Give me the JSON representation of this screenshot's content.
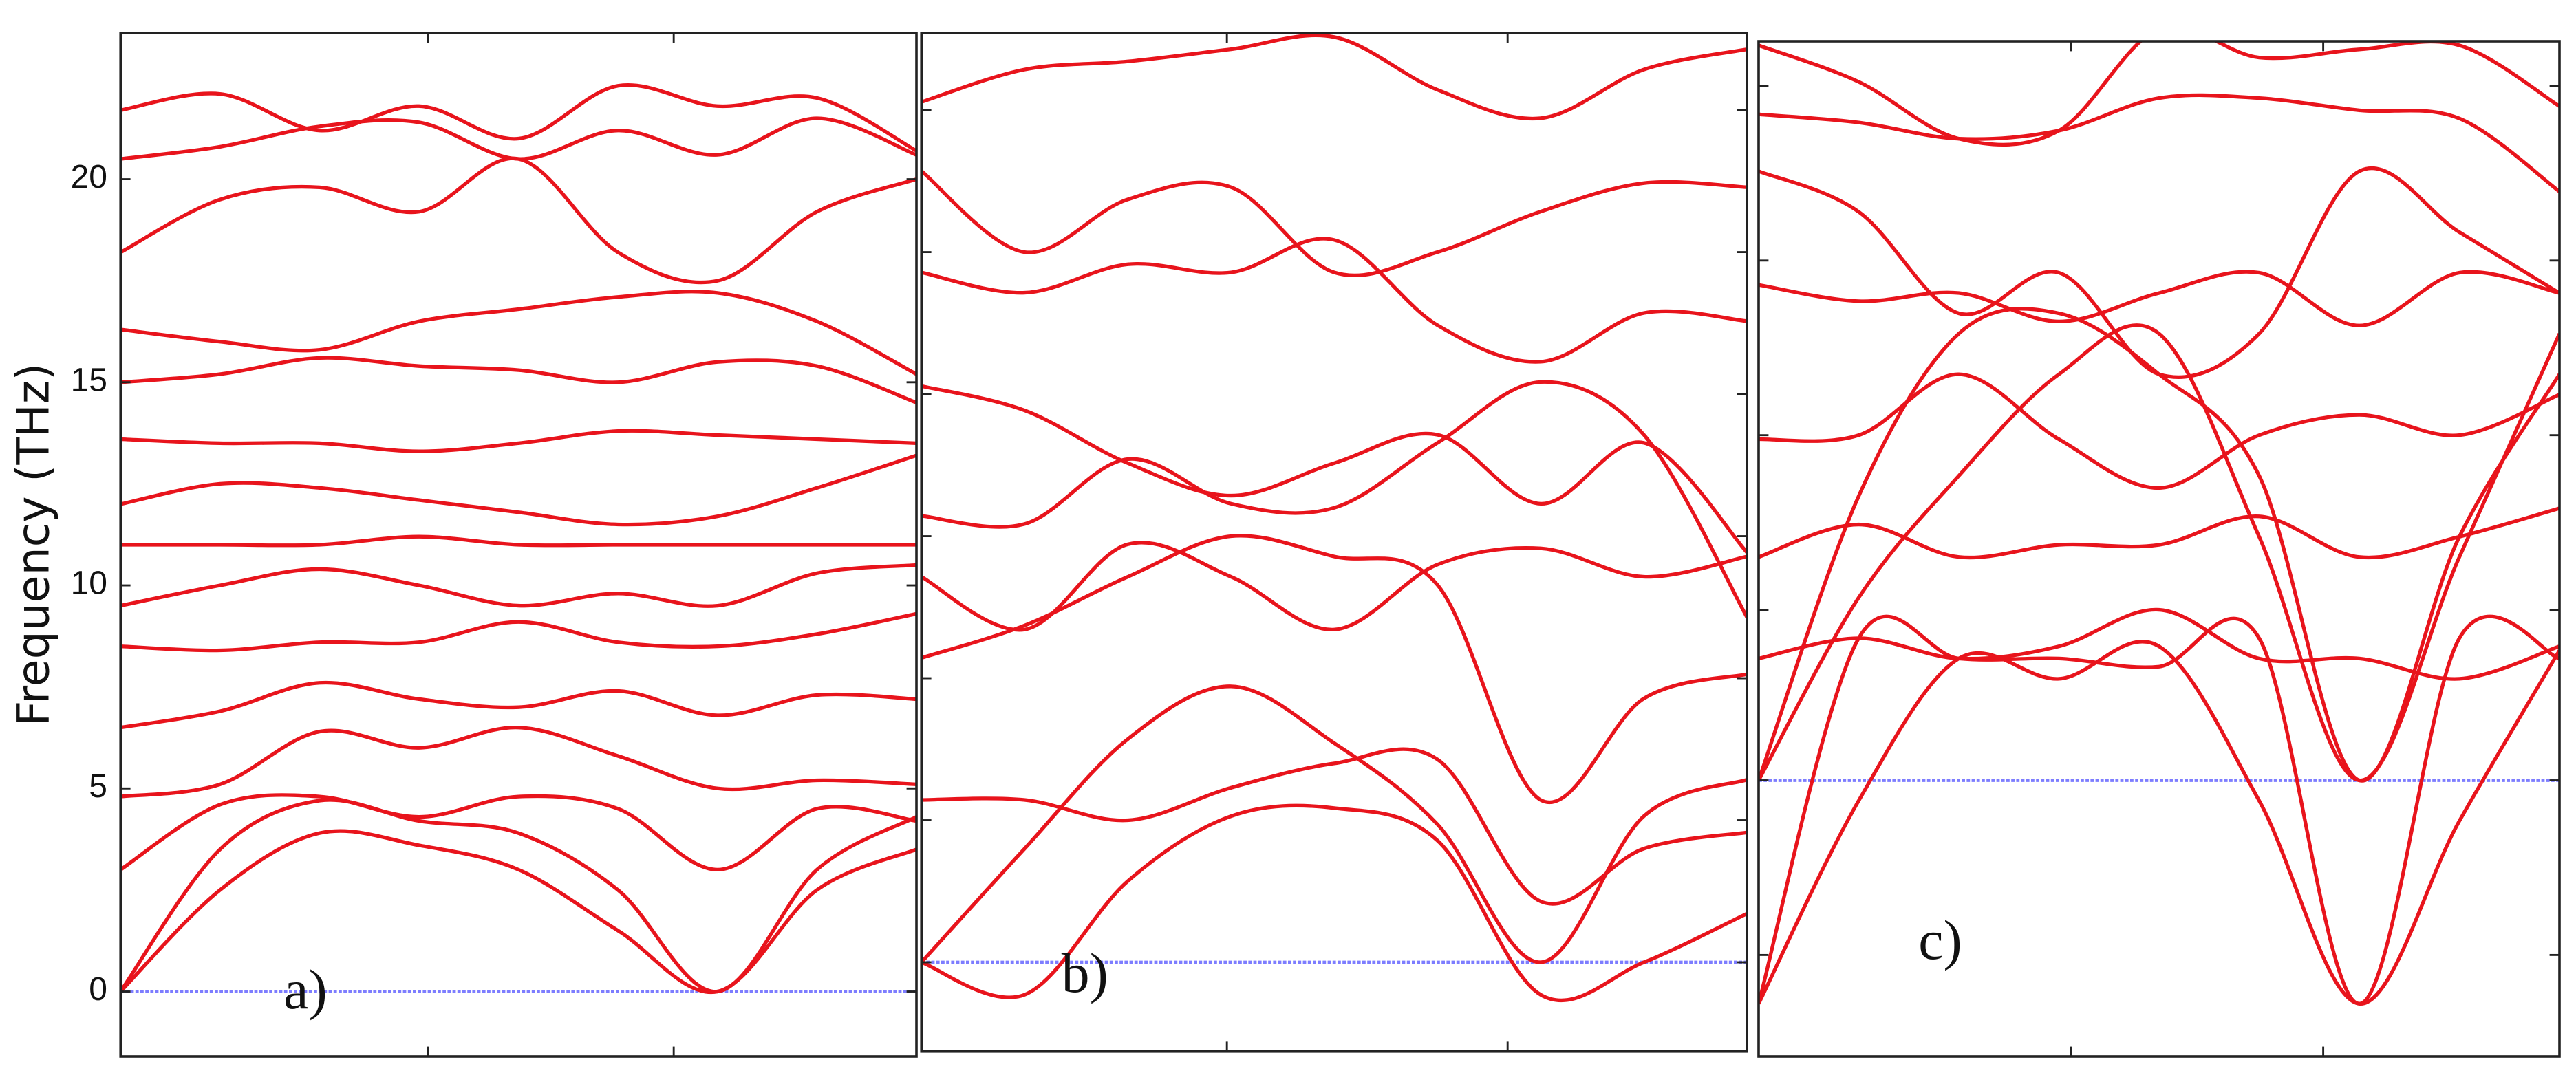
{
  "chart_data": [
    {
      "type": "line",
      "label": "a)",
      "y_label": "Frequency (THz)",
      "color": "#e8141c",
      "x": [
        0,
        0.125,
        0.25,
        0.375,
        0.5,
        0.625,
        0.75,
        0.875,
        1
      ],
      "xlim": [
        0,
        1
      ],
      "xticks": [
        0.386,
        0.695
      ],
      "ylim": [
        -1.6,
        23.6
      ],
      "yticks": [
        0,
        5,
        10,
        15,
        20
      ],
      "baseline": 0,
      "baseline_color": "#7d7dff",
      "series": [
        {
          "values": [
            0,
            2.5,
            3.9,
            3.6,
            3.0,
            1.5,
            0,
            2.5,
            3.5
          ]
        },
        {
          "values": [
            0,
            3.5,
            4.7,
            4.2,
            3.9,
            2.5,
            0,
            3.0,
            4.3
          ]
        },
        {
          "values": [
            3,
            4.6,
            4.8,
            4.3,
            4.8,
            4.5,
            3,
            4.5,
            4.2
          ]
        },
        {
          "values": [
            4.8,
            5.1,
            6.4,
            6.0,
            6.5,
            5.8,
            5.0,
            5.2,
            5.1
          ]
        },
        {
          "values": [
            6.5,
            6.9,
            7.6,
            7.2,
            7.0,
            7.4,
            6.8,
            7.3,
            7.2
          ]
        },
        {
          "values": [
            8.5,
            8.4,
            8.6,
            8.6,
            9.1,
            8.6,
            8.5,
            8.8,
            9.3
          ]
        },
        {
          "values": [
            9.5,
            10.0,
            10.4,
            10.0,
            9.5,
            9.8,
            9.5,
            10.3,
            10.5
          ]
        },
        {
          "values": [
            11,
            11,
            11,
            11.2,
            11,
            11,
            11,
            11,
            11
          ]
        },
        {
          "values": [
            12,
            12.5,
            12.4,
            12.1,
            11.8,
            11.5,
            11.7,
            12.4,
            13.2
          ]
        },
        {
          "values": [
            13.6,
            13.5,
            13.5,
            13.3,
            13.5,
            13.8,
            13.7,
            13.6,
            13.5
          ]
        },
        {
          "values": [
            15,
            15.2,
            15.6,
            15.4,
            15.3,
            15.0,
            15.5,
            15.4,
            14.5
          ]
        },
        {
          "values": [
            16.3,
            16.0,
            15.8,
            16.5,
            16.8,
            17.1,
            17.2,
            16.5,
            15.2
          ]
        },
        {
          "values": [
            18.2,
            19.5,
            19.8,
            19.2,
            20.5,
            18.2,
            17.5,
            19.2,
            20.0
          ]
        },
        {
          "values": [
            20.5,
            20.8,
            21.3,
            21.4,
            20.5,
            21.2,
            20.6,
            21.5,
            20.6
          ]
        },
        {
          "values": [
            21.7,
            22.1,
            21.2,
            21.8,
            21.0,
            22.3,
            21.8,
            22.0,
            20.7
          ]
        }
      ]
    },
    {
      "type": "line",
      "label": "b)",
      "color": "#e8141c",
      "x": [
        0,
        0.125,
        0.25,
        0.375,
        0.5,
        0.625,
        0.75,
        0.875,
        1
      ],
      "xlim": [
        0,
        1
      ],
      "xticks": [
        0.37,
        0.71
      ],
      "ylim": [
        -2.2,
        22.9
      ],
      "yticks": [
        0,
        3.5,
        7,
        10.5,
        14,
        17.5,
        21
      ],
      "baseline": 0,
      "baseline_color": "#7d7dff",
      "series": [
        {
          "values": [
            0,
            -0.8,
            2,
            3.6,
            3.8,
            3.0,
            -0.8,
            0,
            1.2
          ]
        },
        {
          "values": [
            0,
            2.8,
            5.5,
            6.8,
            5.4,
            3.4,
            0,
            3.6,
            4.5
          ]
        },
        {
          "values": [
            4,
            4,
            3.5,
            4.3,
            4.9,
            5.0,
            1.5,
            2.8,
            3.2
          ]
        },
        {
          "values": [
            7.5,
            8.3,
            9.5,
            10.5,
            10.0,
            9.3,
            4,
            6.5,
            7.1
          ]
        },
        {
          "values": [
            9.5,
            8.2,
            10.3,
            9.5,
            8.2,
            9.8,
            10.2,
            9.5,
            10.0
          ]
        },
        {
          "values": [
            11,
            10.8,
            12.4,
            11.3,
            11.2,
            12.8,
            14.3,
            13.0,
            8.5
          ]
        },
        {
          "values": [
            14.2,
            13.6,
            12.3,
            11.5,
            12.3,
            13,
            11.3,
            12.8,
            10.1
          ]
        },
        {
          "values": [
            17,
            16.5,
            17.2,
            17.0,
            17.8,
            15.7,
            14.8,
            16.0,
            15.8
          ]
        },
        {
          "values": [
            19.5,
            17.5,
            18.8,
            19.1,
            17.0,
            17.5,
            18.5,
            19.2,
            19.1
          ]
        },
        {
          "values": [
            21.2,
            22.0,
            22.2,
            22.5,
            22.8,
            21.5,
            20.8,
            22.0,
            22.5
          ]
        }
      ]
    },
    {
      "type": "line",
      "label": "c)",
      "color": "#e8141c",
      "x": [
        0,
        0.125,
        0.25,
        0.375,
        0.5,
        0.625,
        0.75,
        0.875,
        1
      ],
      "xlim": [
        0,
        1
      ],
      "xticks": [
        0.39,
        0.705
      ],
      "ylim": [
        -6.8,
        18.2
      ],
      "yticks": [
        -4.3,
        0,
        4.2,
        8.5,
        12.8,
        17.1
      ],
      "baseline": 0,
      "baseline_color": "#7d7dff",
      "series": [
        {
          "values": [
            -5.5,
            3.5,
            3.0,
            3.0,
            2.8,
            3.5,
            -5.5,
            3.5,
            3.0
          ]
        },
        {
          "values": [
            -5.5,
            -0.5,
            3.0,
            2.5,
            3.3,
            -0.5,
            -5.5,
            -1,
            3.2
          ]
        },
        {
          "values": [
            0,
            4.5,
            7.5,
            10,
            11,
            6,
            0,
            5.5,
            11
          ]
        },
        {
          "values": [
            0,
            7,
            11,
            11.5,
            10,
            7.5,
            0,
            6,
            10
          ]
        },
        {
          "values": [
            3,
            3.5,
            3.0,
            3.3,
            4.2,
            3.0,
            3.0,
            2.5,
            3.3
          ]
        },
        {
          "values": [
            5.5,
            6.3,
            5.5,
            5.8,
            5.8,
            6.5,
            5.5,
            6.0,
            6.7
          ]
        },
        {
          "values": [
            8.4,
            8.5,
            10.0,
            8.4,
            7.2,
            8.5,
            9.0,
            8.5,
            9.5
          ]
        },
        {
          "values": [
            12.2,
            11.8,
            12.0,
            11.3,
            12.0,
            12.5,
            11.2,
            12.5,
            12.0
          ]
        },
        {
          "values": [
            15,
            14,
            11.5,
            12.5,
            10,
            11,
            15,
            13.5,
            12
          ]
        },
        {
          "values": [
            16.4,
            16.2,
            15.8,
            16.0,
            16.8,
            16.8,
            16.5,
            16.3,
            14.5
          ]
        },
        {
          "values": [
            18.1,
            17.2,
            15.8,
            16.0,
            18.5,
            17.8,
            18.0,
            18.1,
            16.6
          ]
        }
      ]
    }
  ]
}
